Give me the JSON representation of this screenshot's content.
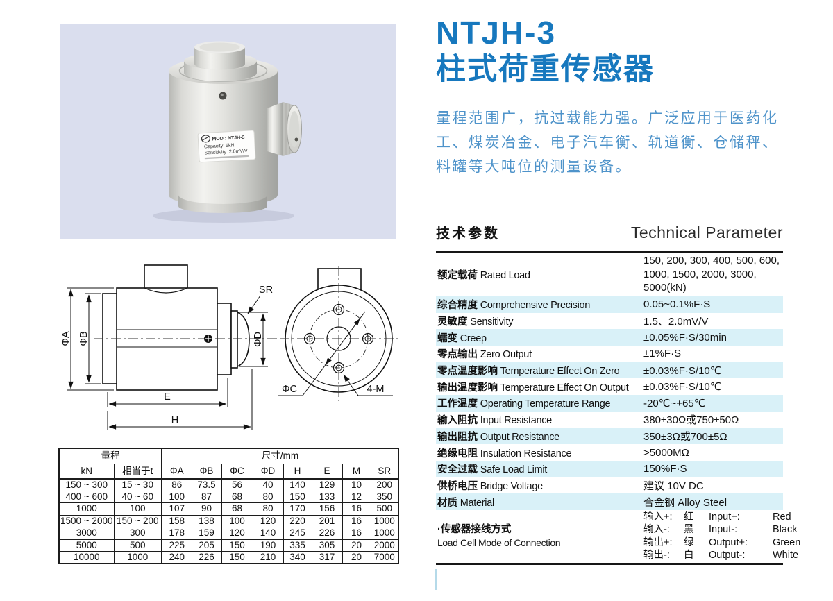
{
  "colors": {
    "accent_blue": "#1778BE",
    "desc_blue": "#4E93CA",
    "row_highlight": "#D9F1F8",
    "photo_bg": "#DADEEE"
  },
  "header": {
    "model": "NTJH-3",
    "product_name": "柱式荷重传感器",
    "description": "量程范围广，抗过载能力强。广泛应用于医药化工、煤炭冶金、电子汽车衡、轨道衡、仓储秤、料罐等大吨位的测量设备。"
  },
  "photo": {
    "label": {
      "logo_icon": "gt-brand-logo",
      "model": "MOD : NTJH-3",
      "capacity": "Capacity:  5kN",
      "sensitivity": "Sensitivity: 2.0mV/V"
    }
  },
  "drawing": {
    "phiA": "ΦA",
    "phiB": "ΦB",
    "phiD": "ΦD",
    "sr": "SR",
    "e": "E",
    "h": "H",
    "phiC": "ΦC",
    "m4": "4-M"
  },
  "params": {
    "heading_zh": "技术参数",
    "heading_en": "Technical Parameter",
    "rows": [
      {
        "zh": "额定载荷",
        "en": "Rated Load",
        "value": "150, 200, 300, 400, 500, 600, 1000, 1500, 2000, 3000, 5000(kN)",
        "tall": true
      },
      {
        "zh": "综合精度",
        "en": "Comprehensive Precision",
        "value": "0.05~0.1%F·S"
      },
      {
        "zh": "灵敏度",
        "en": "Sensitivity",
        "value": "1.5、2.0mV/V"
      },
      {
        "zh": "蠕变",
        "en": "Creep",
        "value": "±0.05%F·S/30min"
      },
      {
        "zh": "零点输出",
        "en": "Zero Output",
        "value": "±1%F·S"
      },
      {
        "zh": "零点温度影响",
        "en": "Temperature Effect On Zero",
        "value": "±0.03%F·S/10℃"
      },
      {
        "zh": "输出温度影响",
        "en": "Temperature Effect On Output",
        "value": "±0.03%F·S/10℃"
      },
      {
        "zh": "工作温度",
        "en": "Operating Temperature Range",
        "value": "-20℃~+65℃"
      },
      {
        "zh": "输入阻抗",
        "en": "Input Resistance",
        "value": "380±30Ω或750±50Ω"
      },
      {
        "zh": "输出阻抗",
        "en": "Output Resistance",
        "value": "350±3Ω或700±5Ω"
      },
      {
        "zh": "绝缘电阻",
        "en": "Insulation Resistance",
        "value": ">5000MΩ"
      },
      {
        "zh": "安全过载",
        "en": "Safe Load Limit",
        "value": "150%F·S"
      },
      {
        "zh": "供桥电压",
        "en": "Bridge Voltage",
        "value": "建议 10V DC"
      },
      {
        "zh": "材质",
        "en": "Material",
        "value": "合金钢 Alloy Steel"
      }
    ],
    "connection": {
      "label_zh": "·传感器接线方式",
      "label_en": "Load Cell Mode of Connection",
      "wires": [
        {
          "zh": "输入+:",
          "zh_color": "红",
          "en": "Input+:",
          "en_color": "Red"
        },
        {
          "zh": "输入-:",
          "zh_color": "黑",
          "en": "Input-:",
          "en_color": "Black"
        },
        {
          "zh": "输出+:",
          "zh_color": "绿",
          "en": "Output+:",
          "en_color": "Green"
        },
        {
          "zh": "输出-:",
          "zh_color": "白",
          "en": "Output-:",
          "en_color": "White"
        }
      ]
    }
  },
  "dim_table": {
    "group_headers": [
      "量程",
      "尺寸/mm"
    ],
    "columns": [
      "kN",
      "相当于t",
      "ΦA",
      "ΦB",
      "ΦC",
      "ΦD",
      "H",
      "E",
      "M",
      "SR"
    ],
    "rows": [
      [
        "150 ~ 300",
        "15 ~ 30",
        "86",
        "73.5",
        "56",
        "40",
        "140",
        "129",
        "10",
        "200"
      ],
      [
        "400 ~ 600",
        "40 ~ 60",
        "100",
        "87",
        "68",
        "80",
        "150",
        "133",
        "12",
        "350"
      ],
      [
        "1000",
        "100",
        "107",
        "90",
        "68",
        "80",
        "170",
        "156",
        "16",
        "500"
      ],
      [
        "1500 ~ 2000",
        "150 ~ 200",
        "158",
        "138",
        "100",
        "120",
        "220",
        "201",
        "16",
        "1000"
      ],
      [
        "3000",
        "300",
        "178",
        "159",
        "120",
        "140",
        "245",
        "226",
        "16",
        "1000"
      ],
      [
        "5000",
        "500",
        "225",
        "205",
        "150",
        "190",
        "335",
        "305",
        "20",
        "2000"
      ],
      [
        "10000",
        "1000",
        "240",
        "226",
        "150",
        "210",
        "340",
        "317",
        "20",
        "7000"
      ]
    ]
  }
}
